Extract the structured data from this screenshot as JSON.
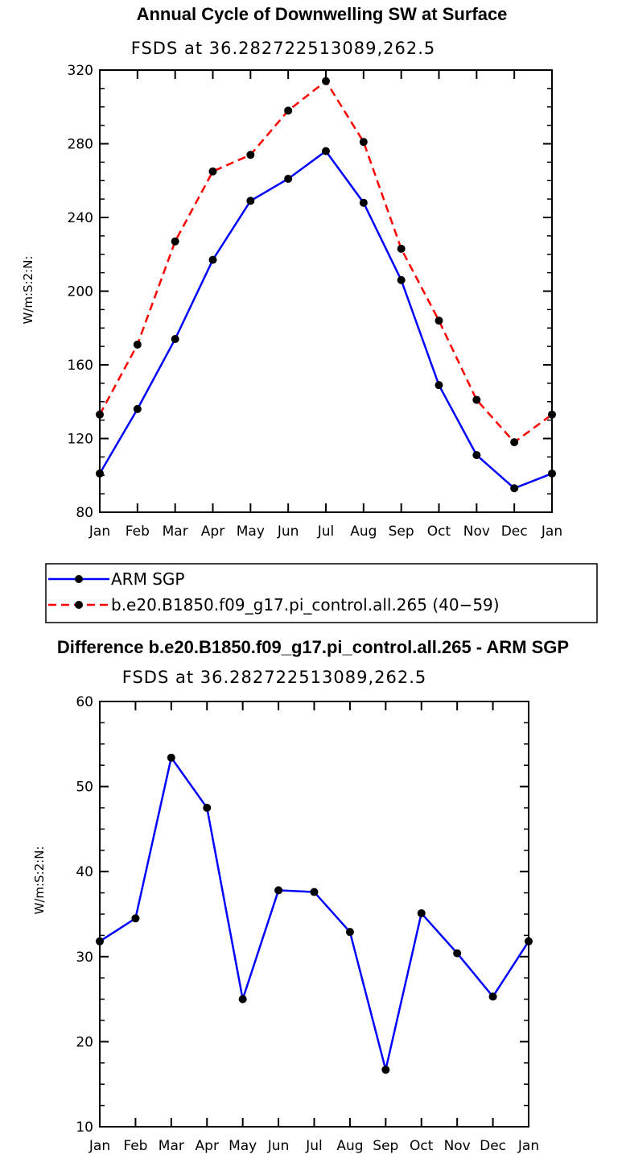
{
  "chart_data": [
    {
      "type": "line",
      "title": "Annual Cycle of Downwelling SW at Surface",
      "subtitle": "FSDS at 36.282722513089,262.5",
      "ylabel": "W/m:S:2:N:",
      "xlabel": "",
      "categories": [
        "Jan",
        "Feb",
        "Mar",
        "Apr",
        "May",
        "Jun",
        "Jul",
        "Aug",
        "Sep",
        "Oct",
        "Nov",
        "Dec",
        "Jan"
      ],
      "ylim": [
        80,
        320
      ],
      "yticks": [
        80,
        120,
        160,
        200,
        240,
        280,
        320
      ],
      "series": [
        {
          "name": "ARM SGP",
          "color": "#0000ff",
          "dash": "solid",
          "values": [
            101,
            136,
            174,
            217,
            249,
            261,
            276,
            248,
            206,
            149,
            111,
            93,
            101
          ]
        },
        {
          "name": "b.e20.B1850.f09_g17.pi_control.all.265 (40−59)",
          "color": "#ff0000",
          "dash": "dashed",
          "values": [
            133,
            171,
            227,
            265,
            274,
            298,
            314,
            281,
            223,
            184,
            141,
            118,
            133
          ]
        }
      ],
      "legend": "below"
    },
    {
      "type": "line",
      "title": "Difference b.e20.B1850.f09_g17.pi_control.all.265 - ARM SGP",
      "subtitle": "FSDS at 36.282722513089,262.5",
      "ylabel": "W/m:S:2:N:",
      "xlabel": "",
      "categories": [
        "Jan",
        "Feb",
        "Mar",
        "Apr",
        "May",
        "Jun",
        "Jul",
        "Aug",
        "Sep",
        "Oct",
        "Nov",
        "Dec",
        "Jan"
      ],
      "ylim": [
        10,
        60
      ],
      "yticks": [
        10,
        20,
        30,
        40,
        50,
        60
      ],
      "series": [
        {
          "color": "#0000ff",
          "dash": "solid",
          "values": [
            31.8,
            34.5,
            53.4,
            47.5,
            25.0,
            37.8,
            37.6,
            32.9,
            16.7,
            35.1,
            30.4,
            25.3,
            31.8
          ]
        }
      ]
    }
  ]
}
